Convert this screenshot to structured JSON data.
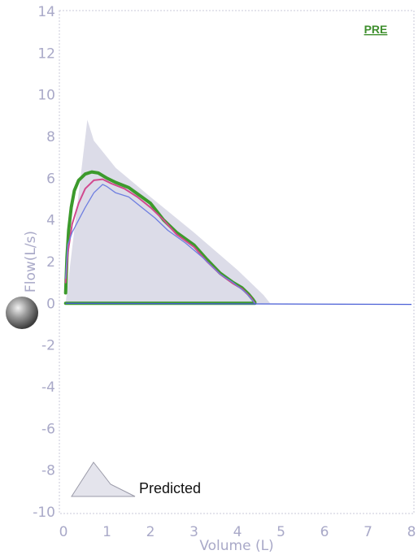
{
  "chart_data": {
    "type": "line",
    "xlabel": "Volume (L)",
    "ylabel": "Flow(L/s)",
    "xlim": [
      0,
      8
    ],
    "ylim": [
      -10,
      14
    ],
    "x_ticks": [
      "0",
      "1",
      "2",
      "3",
      "4",
      "5",
      "6",
      "7",
      "8"
    ],
    "y_ticks": [
      "14",
      "12",
      "10",
      "8",
      "6",
      "4",
      "2",
      "0",
      "-2",
      "-4",
      "-6",
      "-8",
      "-10"
    ],
    "tag": "PRE",
    "legend": [
      {
        "label": "Predicted"
      }
    ],
    "grid": false,
    "colors": {
      "predicted_fill": "#dcdce8",
      "series_1": "#3c9a2c",
      "series_2": "#d14a8f",
      "series_3": "#6f7fe0",
      "baseline": "#4a5fd6",
      "tag": "#3f8f2e",
      "axis_text": "#a9a9c8"
    },
    "predicted": {
      "x": [
        0.05,
        0.55,
        0.7,
        1.2,
        2.0,
        3.0,
        4.0,
        4.6,
        4.75,
        0.05
      ],
      "y": [
        0.0,
        8.8,
        7.8,
        6.5,
        5.1,
        3.4,
        1.6,
        0.4,
        0.0,
        0.0
      ]
    },
    "series": [
      {
        "x": [
          0.05,
          0.08,
          0.12,
          0.18,
          0.25,
          0.35,
          0.5,
          0.65,
          0.8,
          1.0,
          1.2,
          1.5,
          1.8,
          2.0,
          2.3,
          2.6,
          3.0,
          3.3,
          3.6,
          3.9,
          4.1,
          4.25,
          4.35,
          4.4,
          4.4,
          0.05
        ],
        "y": [
          0.5,
          2.2,
          3.5,
          4.6,
          5.4,
          5.9,
          6.2,
          6.3,
          6.25,
          6.0,
          5.8,
          5.55,
          5.1,
          4.8,
          4.0,
          3.4,
          2.8,
          2.1,
          1.45,
          1.0,
          0.75,
          0.45,
          0.2,
          0.05,
          0.0,
          0.0
        ]
      },
      {
        "x": [
          0.05,
          0.1,
          0.2,
          0.35,
          0.5,
          0.7,
          0.9,
          1.1,
          1.4,
          1.7,
          2.0,
          2.3,
          2.6,
          3.0,
          3.3,
          3.6,
          3.9,
          4.1,
          4.3,
          4.4
        ],
        "y": [
          1.0,
          2.4,
          3.8,
          4.8,
          5.5,
          5.9,
          5.95,
          5.75,
          5.5,
          5.1,
          4.6,
          4.0,
          3.3,
          2.7,
          2.0,
          1.4,
          0.95,
          0.7,
          0.3,
          0.0
        ]
      },
      {
        "x": [
          0.05,
          0.1,
          0.2,
          0.35,
          0.5,
          0.7,
          0.9,
          1.0,
          1.2,
          1.5,
          1.8,
          2.1,
          2.4,
          2.8,
          3.2,
          3.6,
          3.9,
          4.2,
          4.4
        ],
        "y": [
          1.2,
          2.8,
          3.4,
          4.0,
          4.6,
          5.3,
          5.7,
          5.6,
          5.3,
          5.1,
          4.6,
          4.1,
          3.5,
          2.9,
          2.2,
          1.4,
          1.0,
          0.5,
          0.0
        ]
      }
    ],
    "baseline": {
      "x": [
        0.05,
        8.0
      ],
      "y": [
        0.0,
        -0.05
      ]
    }
  }
}
